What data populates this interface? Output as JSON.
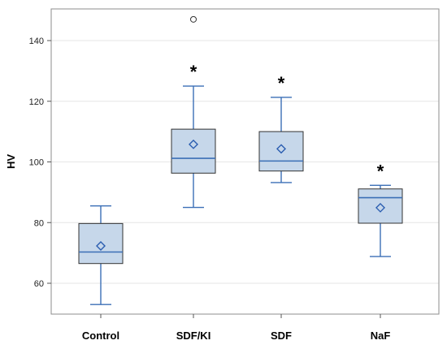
{
  "chart_data": {
    "type": "box",
    "xlabel": "",
    "ylabel": "HV",
    "ylim": [
      50,
      150
    ],
    "y_ticks": [
      60,
      80,
      100,
      120,
      140
    ],
    "grid": true,
    "categories": [
      "Control",
      "SDF/KI",
      "SDF",
      "NaF"
    ],
    "boxes": [
      {
        "category": "Control",
        "min": 53,
        "q1": 66.5,
        "median": 70.3,
        "mean": 72.3,
        "q3": 79.7,
        "max": 85.5,
        "outliers": [],
        "marker": ""
      },
      {
        "category": "SDF/KI",
        "min": 85,
        "q1": 96.3,
        "median": 101.2,
        "mean": 105.8,
        "q3": 110.8,
        "max": 125,
        "outliers": [
          147
        ],
        "marker": "*"
      },
      {
        "category": "SDF",
        "min": 93.2,
        "q1": 97,
        "median": 100.3,
        "mean": 104.3,
        "q3": 110,
        "max": 121.3,
        "outliers": [],
        "marker": "*"
      },
      {
        "category": "NaF",
        "min": 68.8,
        "q1": 79.8,
        "median": 88.2,
        "mean": 84.9,
        "q3": 91.1,
        "max": 92.3,
        "outliers": [],
        "marker": "*"
      }
    ],
    "colors": {
      "box_fill": "#c6d7ea",
      "box_stroke": "#333333",
      "whisker": "#3b6fb6",
      "median": "#3b6fb6",
      "mean_marker": "#2a5db0",
      "grid": "#e6e6e6",
      "frame": "#8c8c8c"
    }
  }
}
